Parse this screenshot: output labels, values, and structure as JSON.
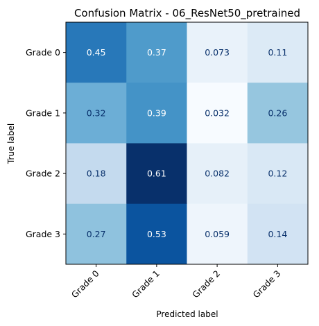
{
  "chart_data": {
    "type": "heatmap",
    "title": "Confusion Matrix - 06_ResNet50_pretrained",
    "xlabel": "Predicted label",
    "ylabel": "True label",
    "x_categories": [
      "Grade 0",
      "Grade 1",
      "Grade 2",
      "Grade 3"
    ],
    "y_categories": [
      "Grade 0",
      "Grade 1",
      "Grade 2",
      "Grade 3"
    ],
    "values": [
      [
        0.45,
        0.37,
        0.073,
        0.11
      ],
      [
        0.32,
        0.39,
        0.032,
        0.26
      ],
      [
        0.18,
        0.61,
        0.082,
        0.12
      ],
      [
        0.27,
        0.53,
        0.059,
        0.14
      ]
    ],
    "value_labels": [
      [
        "0.45",
        "0.37",
        "0.073",
        "0.11"
      ],
      [
        "0.32",
        "0.39",
        "0.032",
        "0.26"
      ],
      [
        "0.18",
        "0.61",
        "0.082",
        "0.12"
      ],
      [
        "0.27",
        "0.53",
        "0.059",
        "0.14"
      ]
    ],
    "colormap": "Blues",
    "colormap_stops": [
      "#f7fbff",
      "#deebf7",
      "#c6dbef",
      "#9ecae1",
      "#6baed6",
      "#4292c6",
      "#2171b5",
      "#08519c",
      "#08306b"
    ],
    "text_colors": {
      "light": "#ffffff",
      "dark": "#08306b"
    },
    "x_tick_rotation": "45 degrees",
    "grid": false,
    "colorbar": false
  }
}
